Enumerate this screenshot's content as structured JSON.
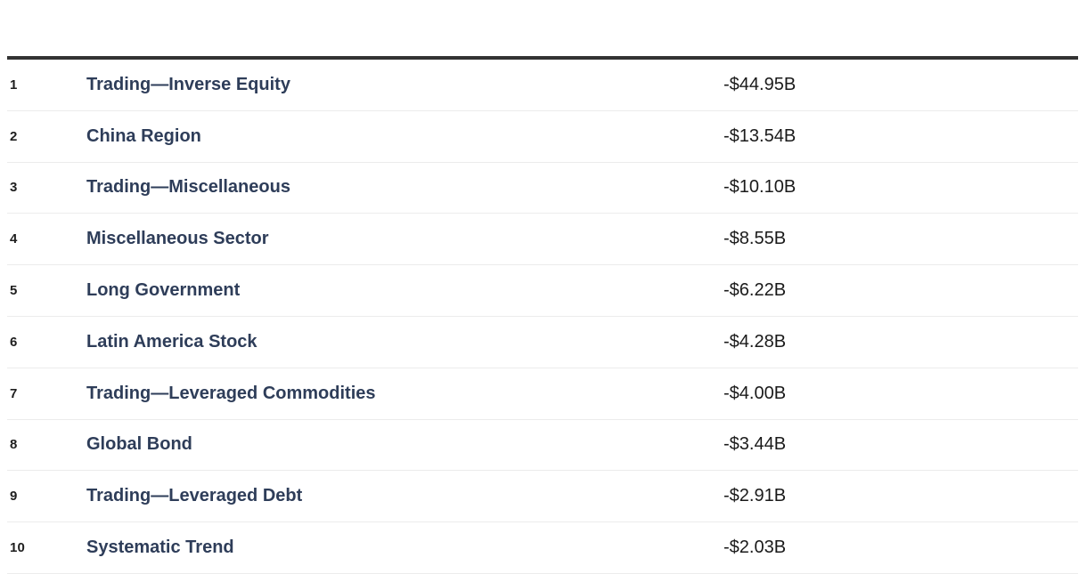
{
  "colors": {
    "top_bar": "#333333",
    "divider": "#ececec",
    "category_link": "#2e3d59",
    "value_text": "#1a1a1a",
    "rank_text": "#1e1e1e"
  },
  "table": {
    "rows": [
      {
        "rank": "1",
        "category": "Trading—Inverse Equity",
        "value": "-$44.95B"
      },
      {
        "rank": "2",
        "category": "China Region",
        "value": "-$13.54B"
      },
      {
        "rank": "3",
        "category": "Trading—Miscellaneous",
        "value": "-$10.10B"
      },
      {
        "rank": "4",
        "category": "Miscellaneous Sector",
        "value": "-$8.55B"
      },
      {
        "rank": "5",
        "category": "Long Government",
        "value": "-$6.22B"
      },
      {
        "rank": "6",
        "category": "Latin America Stock",
        "value": "-$4.28B"
      },
      {
        "rank": "7",
        "category": "Trading—Leveraged Commodities",
        "value": "-$4.00B"
      },
      {
        "rank": "8",
        "category": "Global Bond",
        "value": "-$3.44B"
      },
      {
        "rank": "9",
        "category": "Trading—Leveraged Debt",
        "value": "-$2.91B"
      },
      {
        "rank": "10",
        "category": "Systematic Trend",
        "value": "-$2.03B"
      }
    ]
  },
  "chart_data": {
    "type": "table",
    "columns": [
      "rank",
      "category",
      "net_flow"
    ],
    "rows": [
      [
        "1",
        "Trading—Inverse Equity",
        "-$44.95B"
      ],
      [
        "2",
        "China Region",
        "-$13.54B"
      ],
      [
        "3",
        "Trading—Miscellaneous",
        "-$10.10B"
      ],
      [
        "4",
        "Miscellaneous Sector",
        "-$8.55B"
      ],
      [
        "5",
        "Long Government",
        "-$6.22B"
      ],
      [
        "6",
        "Latin America Stock",
        "-$4.28B"
      ],
      [
        "7",
        "Trading—Leveraged Commodities",
        "-$4.00B"
      ],
      [
        "8",
        "Global Bond",
        "-$3.44B"
      ],
      [
        "9",
        "Trading—Leveraged Debt",
        "-$2.91B"
      ],
      [
        "10",
        "Systematic Trend",
        "-$2.03B"
      ]
    ],
    "values_billions_usd": [
      -44.95,
      -13.54,
      -10.1,
      -8.55,
      -6.22,
      -4.28,
      -4.0,
      -3.44,
      -2.91,
      -2.03
    ],
    "title": "",
    "notes": "Ranked list of categories with negative dollar flows in billions; thick top rule, light row dividers"
  }
}
